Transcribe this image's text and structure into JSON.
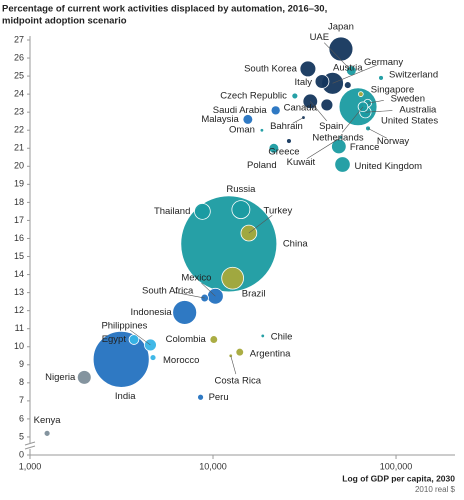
{
  "chart_data": {
    "type": "scatter",
    "title": "Percentage of current work activities displaced by automation, 2016–30,",
    "subtitle": "midpoint adoption scenario",
    "x_label": "Log of GDP per capita, 2030",
    "x_note": "2010 real $",
    "log_x": true,
    "y_axis_break": true,
    "xlim": [
      1000,
      210000
    ],
    "ylim": [
      4,
      27
    ],
    "xticks": [
      {
        "value": 1000,
        "label": "1,000"
      },
      {
        "value": 10000,
        "label": "10,000"
      },
      {
        "value": 100000,
        "label": "100,000"
      }
    ],
    "yticks": [
      0,
      5,
      6,
      7,
      8,
      9,
      10,
      11,
      12,
      13,
      14,
      15,
      16,
      17,
      18,
      19,
      20,
      21,
      22,
      23,
      24,
      25,
      26,
      27
    ],
    "categories": [
      "China",
      "India",
      "United States",
      "Japan",
      "UAE",
      "South Korea",
      "Austria",
      "Germany",
      "Italy",
      "Switzerland",
      "Canada",
      "Singapore",
      "Czech Republic",
      "Saudi Arabia",
      "Malaysia",
      "Oman",
      "Bahrain",
      "Spain",
      "Sweden",
      "Australia",
      "Netherlands",
      "Norway",
      "Kuwait",
      "Greece",
      "Poland",
      "France",
      "United Kingdom",
      "Russia",
      "Thailand",
      "Turkey",
      "Mexico",
      "Brazil",
      "South Africa",
      "Indonesia",
      "Colombia",
      "Chile",
      "Argentina",
      "Costa Rica",
      "Egypt",
      "Philippines",
      "Morocco",
      "Nigeria",
      "Peru",
      "Kenya"
    ],
    "x": [
      12200,
      3150,
      62000,
      50000,
      57000,
      33000,
      54500,
      45000,
      39400,
      82800,
      41900,
      64200,
      28000,
      22000,
      15500,
      18500,
      31200,
      34000,
      70000,
      68000,
      66000,
      70300,
      50000,
      26000,
      21500,
      48700,
      51000,
      14200,
      8750,
      15700,
      10300,
      12800,
      9000,
      7000,
      10100,
      18700,
      14000,
      12500,
      3700,
      4550,
      4700,
      1980,
      8550,
      1240
    ],
    "values": [
      15.7,
      9.3,
      23.3,
      26.5,
      25.3,
      25.4,
      24.5,
      24.6,
      24.7,
      24.9,
      23.4,
      24.0,
      23.9,
      23.1,
      22.6,
      22.0,
      22.7,
      23.6,
      23.5,
      23.0,
      23.3,
      22.1,
      21.6,
      21.4,
      21.0,
      21.1,
      20.1,
      17.6,
      17.5,
      16.3,
      12.8,
      13.8,
      12.7,
      11.9,
      10.4,
      10.6,
      9.7,
      9.5,
      10.4,
      10.1,
      9.4,
      8.3,
      7.2,
      5.2
    ],
    "sizes": [
      770,
      262,
      120,
      48,
      8,
      21,
      4,
      40,
      16,
      2,
      12,
      2,
      3,
      7,
      8,
      1,
      0.5,
      18,
      5,
      11,
      8,
      2,
      1,
      2,
      8,
      18,
      20,
      27,
      21,
      21,
      21,
      40,
      5,
      48,
      5,
      1,
      5,
      1,
      8,
      12,
      3,
      16,
      3,
      3
    ],
    "colors": [
      "#1a9ba1",
      "#2472c0",
      "#1a9ba1",
      "#14365d",
      "#1a9ba1",
      "#14365d",
      "#14365d",
      "#14365d",
      "#14365d",
      "#1a9ba1",
      "#14365d",
      "#a7a93a",
      "#1a9ba1",
      "#2472c0",
      "#2472c0",
      "#1a9ba1",
      "#14365d",
      "#14365d",
      "#1a9ba1",
      "#1a9ba1",
      "#1a9ba1",
      "#1a9ba1",
      "#1a9ba1",
      "#14365d",
      "#1a9ba1",
      "#1a9ba1",
      "#1a9ba1",
      "#1a9ba1",
      "#1a9ba1",
      "#a7a93a",
      "#2472c0",
      "#a7a93a",
      "#2472c0",
      "#2472c0",
      "#a7a93a",
      "#1a9ba1",
      "#a7a93a",
      "#a7a93a",
      "#37b4e6",
      "#37b4e6",
      "#37b4e6",
      "#7d8e9a",
      "#2472c0",
      "#7d8e9a"
    ]
  }
}
